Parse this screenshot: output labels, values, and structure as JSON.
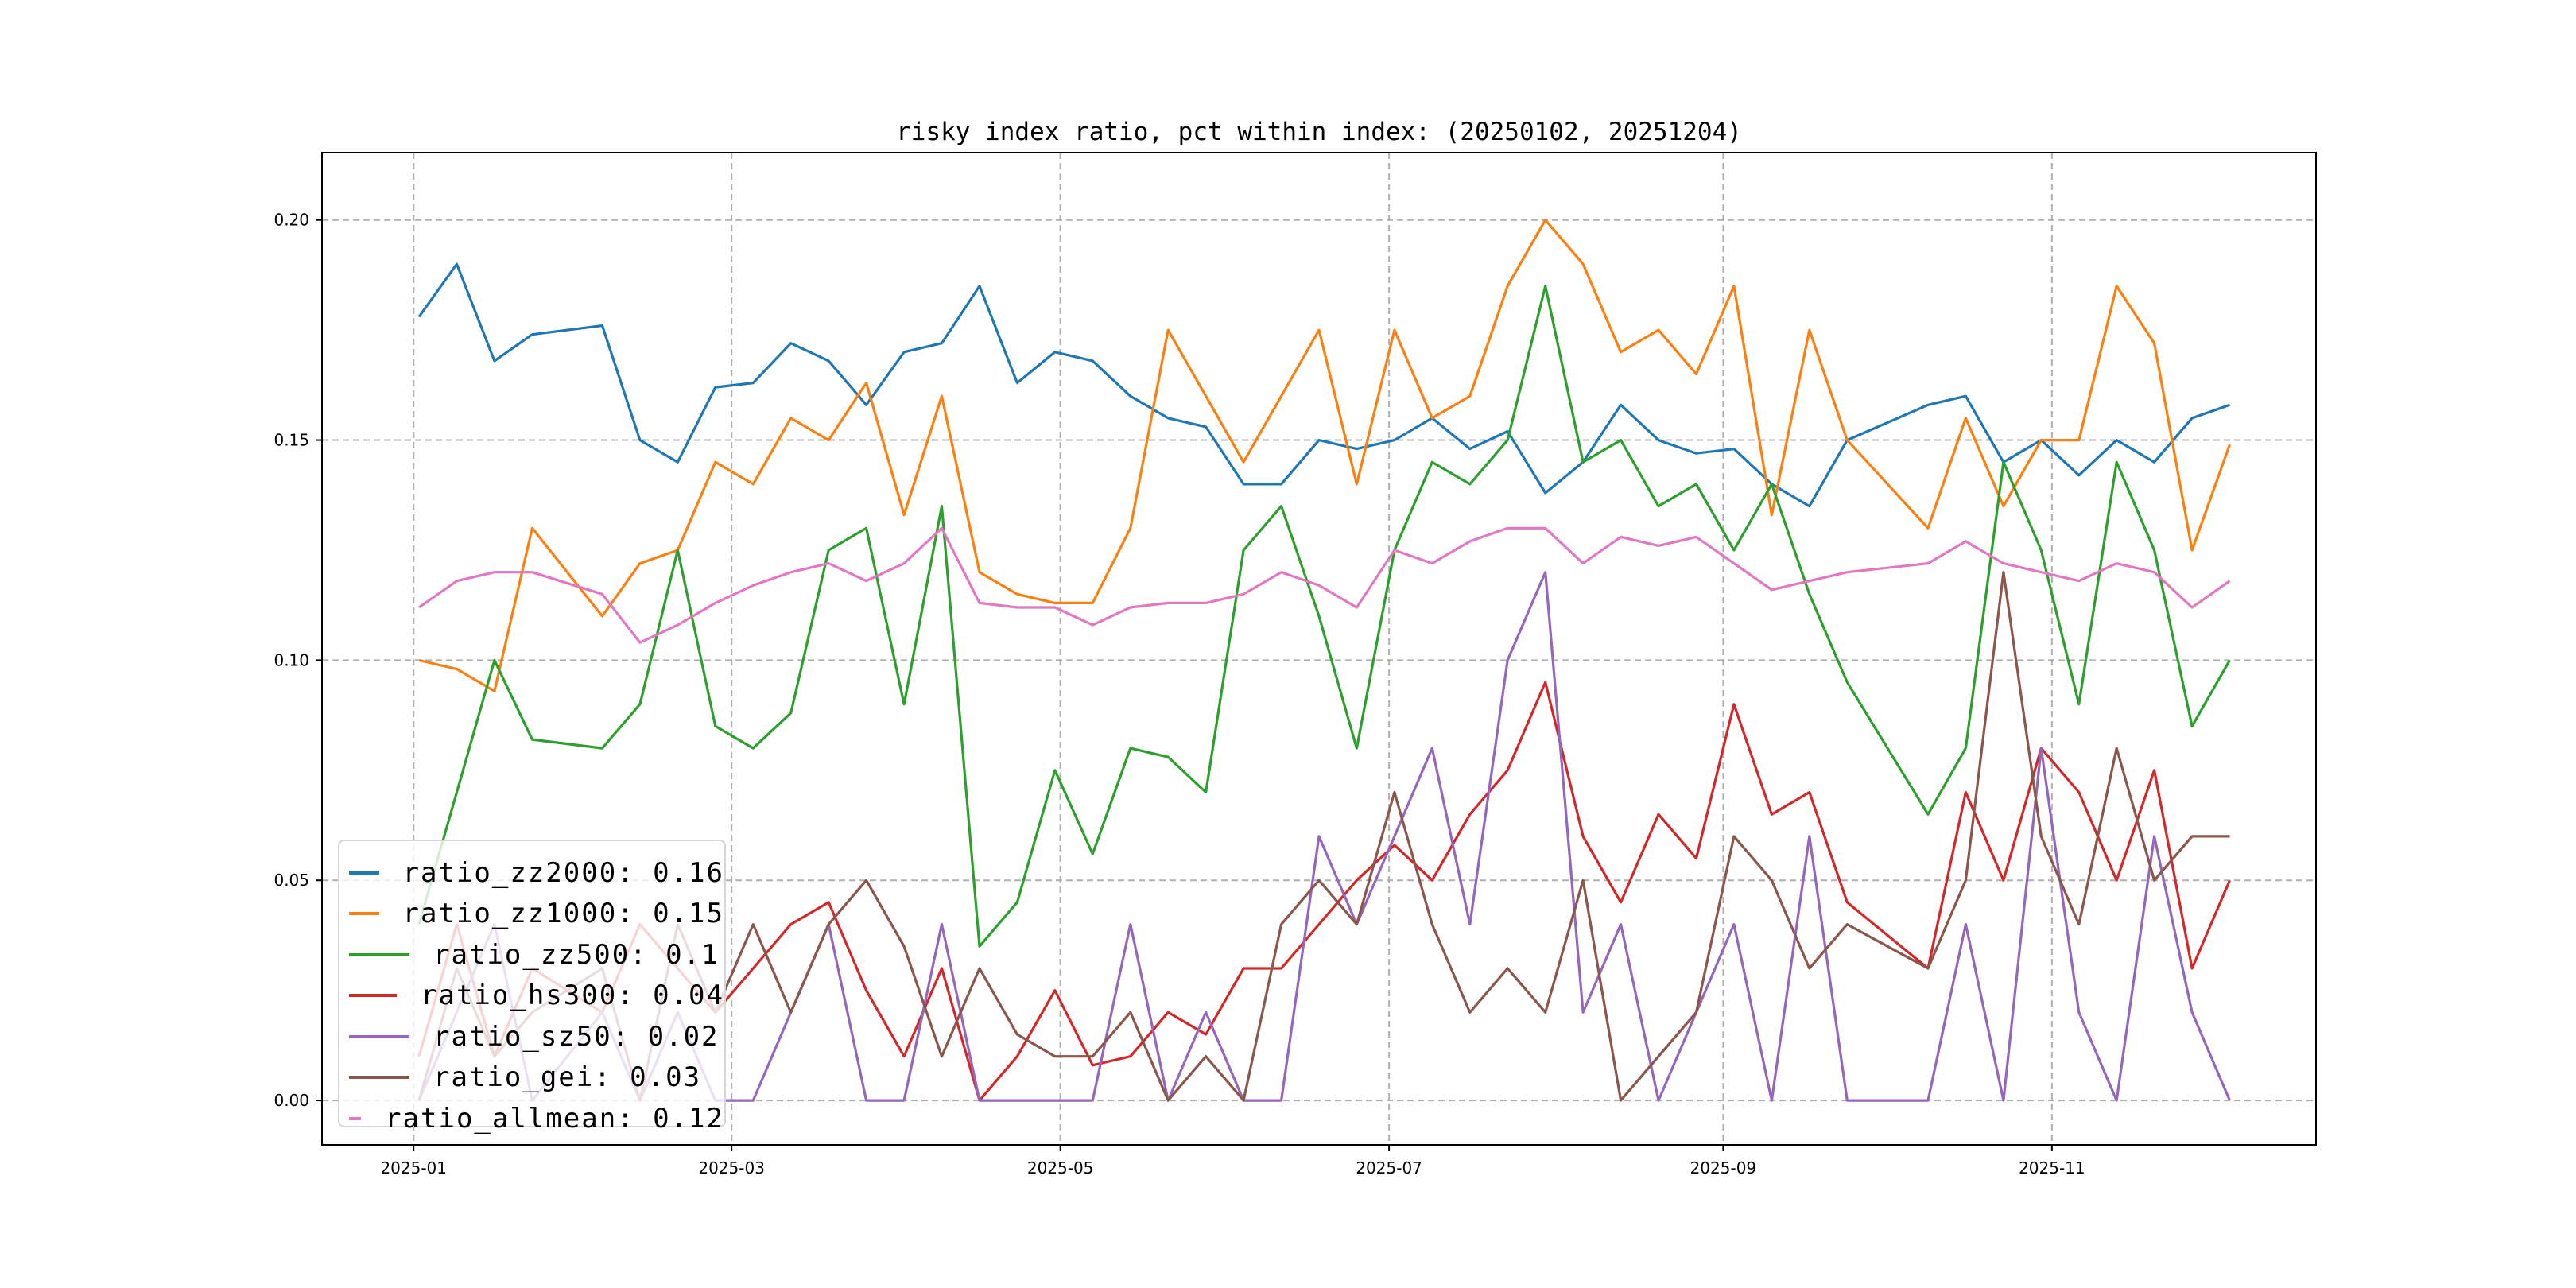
{
  "chart_data": {
    "type": "line",
    "title": "risky index ratio, pct within index: (20250102, 20251204)",
    "xlabel": "",
    "ylabel": "",
    "ylim": [
      -0.0101,
      0.2153
    ],
    "xlim": [
      "2024-12-15",
      "2025-12-20"
    ],
    "grid": true,
    "legend_position": "lower-left",
    "y_ticks": [
      "0.00",
      "0.05",
      "0.10",
      "0.15",
      "0.20"
    ],
    "y_tick_values": [
      0,
      0.05,
      0.1,
      0.15,
      0.2
    ],
    "x_ticks": [
      "2025-01",
      "2025-03",
      "2025-05",
      "2025-07",
      "2025-09",
      "2025-11"
    ],
    "x_tick_values": [
      "2025-01-01",
      "2025-03-01",
      "2025-05-01",
      "2025-07-01",
      "2025-09-01",
      "2025-11-01"
    ],
    "x": [
      "2025-01-02",
      "2025-01-09",
      "2025-01-16",
      "2025-01-23",
      "2025-02-05",
      "2025-02-12",
      "2025-02-19",
      "2025-02-26",
      "2025-03-05",
      "2025-03-12",
      "2025-03-19",
      "2025-03-26",
      "2025-04-02",
      "2025-04-09",
      "2025-04-16",
      "2025-04-23",
      "2025-04-30",
      "2025-05-07",
      "2025-05-14",
      "2025-05-21",
      "2025-05-28",
      "2025-06-04",
      "2025-06-11",
      "2025-06-18",
      "2025-06-25",
      "2025-07-02",
      "2025-07-09",
      "2025-07-16",
      "2025-07-23",
      "2025-07-30",
      "2025-08-06",
      "2025-08-13",
      "2025-08-20",
      "2025-08-27",
      "2025-09-03",
      "2025-09-10",
      "2025-09-17",
      "2025-09-24",
      "2025-10-09",
      "2025-10-16",
      "2025-10-23",
      "2025-10-30",
      "2025-11-06",
      "2025-11-13",
      "2025-11-20",
      "2025-11-27",
      "2025-12-04"
    ],
    "series": [
      {
        "name": "ratio_zz2000",
        "legend": "ratio_zz2000: 0.16",
        "color": "#1f77b4",
        "values": [
          0.178,
          0.19,
          0.168,
          0.174,
          0.176,
          0.15,
          0.145,
          0.162,
          0.163,
          0.172,
          0.168,
          0.158,
          0.17,
          0.172,
          0.185,
          0.163,
          0.17,
          0.168,
          0.16,
          0.155,
          0.153,
          0.14,
          0.14,
          0.15,
          0.148,
          0.15,
          0.155,
          0.148,
          0.152,
          0.138,
          0.145,
          0.158,
          0.15,
          0.147,
          0.148,
          0.14,
          0.135,
          0.15,
          0.158,
          0.16,
          0.145,
          0.15,
          0.142,
          0.15,
          0.145,
          0.155,
          0.158
        ]
      },
      {
        "name": "ratio_zz1000",
        "legend": "ratio_zz1000: 0.15",
        "color": "#ff7f0e",
        "values": [
          0.1,
          0.098,
          0.093,
          0.13,
          0.11,
          0.122,
          0.125,
          0.145,
          0.14,
          0.155,
          0.15,
          0.163,
          0.133,
          0.16,
          0.12,
          0.115,
          0.113,
          0.113,
          0.13,
          0.175,
          0.16,
          0.145,
          0.16,
          0.175,
          0.14,
          0.175,
          0.155,
          0.16,
          0.185,
          0.2,
          0.19,
          0.17,
          0.175,
          0.165,
          0.185,
          0.133,
          0.175,
          0.15,
          0.13,
          0.155,
          0.135,
          0.15,
          0.15,
          0.185,
          0.172,
          0.125,
          0.149
        ]
      },
      {
        "name": "ratio_zz500",
        "legend": "ratio_zz500: 0.1",
        "color": "#2ca02c",
        "values": [
          0.04,
          0.07,
          0.1,
          0.082,
          0.08,
          0.09,
          0.125,
          0.085,
          0.08,
          0.088,
          0.125,
          0.13,
          0.09,
          0.135,
          0.035,
          0.045,
          0.075,
          0.056,
          0.08,
          0.078,
          0.07,
          0.125,
          0.135,
          0.11,
          0.08,
          0.125,
          0.145,
          0.14,
          0.15,
          0.185,
          0.145,
          0.15,
          0.135,
          0.14,
          0.125,
          0.14,
          0.115,
          0.095,
          0.065,
          0.08,
          0.145,
          0.125,
          0.09,
          0.145,
          0.125,
          0.085,
          0.1
        ]
      },
      {
        "name": "ratio_hs300",
        "legend": "ratio_hs300: 0.04",
        "color": "#d62728",
        "values": [
          0.01,
          0.04,
          0.01,
          0.03,
          0.02,
          0.04,
          0.03,
          0.02,
          0.03,
          0.04,
          0.045,
          0.025,
          0.01,
          0.03,
          0.0,
          0.01,
          0.025,
          0.008,
          0.01,
          0.02,
          0.015,
          0.03,
          0.03,
          0.04,
          0.05,
          0.058,
          0.05,
          0.065,
          0.075,
          0.095,
          0.06,
          0.045,
          0.065,
          0.055,
          0.09,
          0.065,
          0.07,
          0.045,
          0.03,
          0.07,
          0.05,
          0.08,
          0.07,
          0.05,
          0.075,
          0.03,
          0.05
        ]
      },
      {
        "name": "ratio_sz50",
        "legend": "ratio_sz50: 0.02",
        "color": "#9467bd",
        "values": [
          0.0,
          0.02,
          0.04,
          0.0,
          0.02,
          0.0,
          0.02,
          0.0,
          0.0,
          0.02,
          0.04,
          0.0,
          0.0,
          0.04,
          0.0,
          0.0,
          0.0,
          0.0,
          0.04,
          0.0,
          0.02,
          0.0,
          0.0,
          0.06,
          0.04,
          0.06,
          0.08,
          0.04,
          0.1,
          0.12,
          0.02,
          0.04,
          0.0,
          0.02,
          0.04,
          0.0,
          0.06,
          0.0,
          0.0,
          0.04,
          0.0,
          0.08,
          0.02,
          0.0,
          0.06,
          0.02,
          0.0
        ]
      },
      {
        "name": "ratio_gei",
        "legend": "ratio_gei: 0.03",
        "color": "#8c564b",
        "values": [
          0.0,
          0.03,
          0.01,
          0.02,
          0.03,
          0.0,
          0.04,
          0.02,
          0.04,
          0.02,
          0.04,
          0.05,
          0.035,
          0.01,
          0.03,
          0.015,
          0.01,
          0.01,
          0.02,
          0.0,
          0.01,
          0.0,
          0.04,
          0.05,
          0.04,
          0.07,
          0.04,
          0.02,
          0.03,
          0.02,
          0.05,
          0.0,
          0.01,
          0.02,
          0.06,
          0.05,
          0.03,
          0.04,
          0.03,
          0.05,
          0.12,
          0.06,
          0.04,
          0.08,
          0.05,
          0.06,
          0.06
        ]
      },
      {
        "name": "ratio_allmean",
        "legend": "ratio_allmean: 0.12",
        "color": "#e377c2",
        "values": [
          0.112,
          0.118,
          0.12,
          0.12,
          0.115,
          0.104,
          0.108,
          0.113,
          0.117,
          0.12,
          0.122,
          0.118,
          0.122,
          0.13,
          0.113,
          0.112,
          0.112,
          0.108,
          0.112,
          0.113,
          0.113,
          0.115,
          0.12,
          0.117,
          0.112,
          0.125,
          0.122,
          0.127,
          0.13,
          0.13,
          0.122,
          0.128,
          0.126,
          0.128,
          0.122,
          0.116,
          0.118,
          0.12,
          0.122,
          0.127,
          0.122,
          0.12,
          0.118,
          0.122,
          0.12,
          0.112,
          0.118
        ]
      }
    ]
  }
}
